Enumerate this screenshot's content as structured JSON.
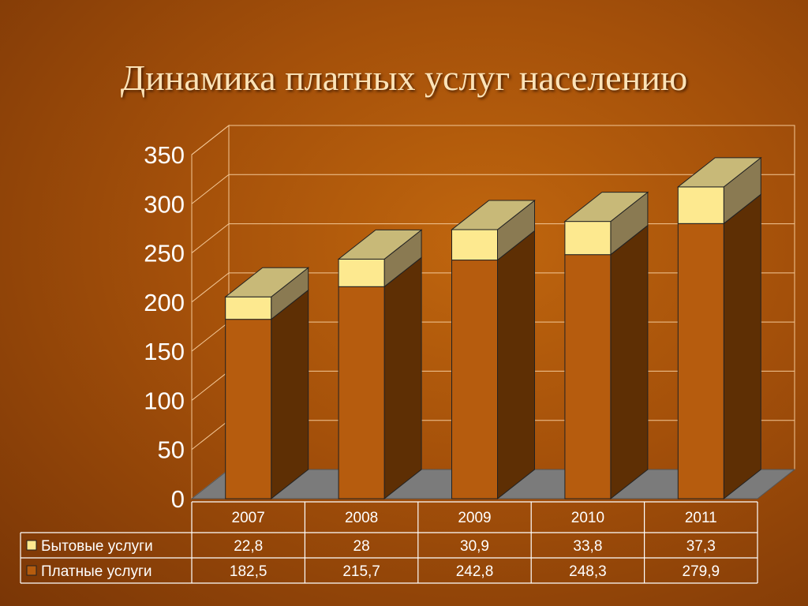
{
  "slide": {
    "title": "Динамика платных услуг населению"
  },
  "chart_data": {
    "type": "bar",
    "stacked": true,
    "three_d": true,
    "categories": [
      "2007",
      "2008",
      "2009",
      "2010",
      "2011"
    ],
    "series": [
      {
        "name": "Платные услуги",
        "values": [
          "182,5",
          "215,7",
          "242,8",
          "248,3",
          "279,9"
        ],
        "numeric": [
          182.5,
          215.7,
          242.8,
          248.3,
          279.9
        ],
        "color": "#b65c0e"
      },
      {
        "name": "Бытовые услуги",
        "values": [
          "22,8",
          "28",
          "30,9",
          "33,8",
          "37,3"
        ],
        "numeric": [
          22.8,
          28,
          30.9,
          33.8,
          37.3
        ],
        "color": "#fde98f"
      }
    ],
    "yticks": [
      "0",
      "50",
      "100",
      "150",
      "200",
      "250",
      "300",
      "350"
    ],
    "ylim": [
      0,
      350
    ],
    "grid": true,
    "legend": "data-table"
  }
}
